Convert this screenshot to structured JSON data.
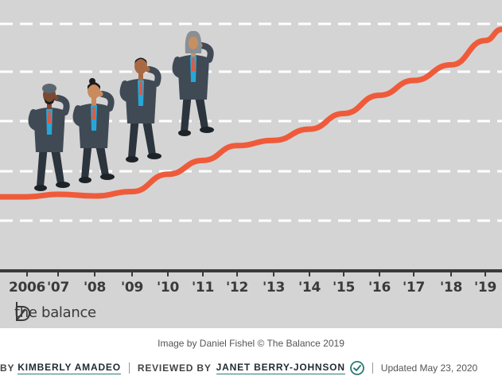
{
  "chart_data": {
    "type": "line",
    "title": "",
    "xlabel": "",
    "ylabel": "",
    "categories": [
      "2006",
      "'07",
      "'08",
      "'09",
      "'10",
      "'11",
      "'12",
      "'13",
      "'14",
      "'15",
      "'16",
      "'17",
      "'18",
      "'19"
    ],
    "grid": true,
    "legend": "none",
    "series": [
      {
        "values_relative": [
          1.0,
          1.3,
          1.1,
          1.6,
          3.6,
          5.2,
          6.9,
          7.5,
          8.8,
          10.6,
          12.7,
          14.4,
          16.2,
          19.0
        ]
      }
    ],
    "colors": {
      "line": "#ef5b3a",
      "axis": "#3a3a3a",
      "grid": "#ffffff",
      "background": "#d4d4d4"
    }
  },
  "illustration": {
    "people": [
      {
        "name": "person-turban",
        "icon": "person-thinking"
      },
      {
        "name": "person-phone",
        "icon": "person-on-phone"
      },
      {
        "name": "person-cap",
        "icon": "person-on-phone"
      },
      {
        "name": "person-hijab",
        "icon": "person-on-phone"
      }
    ]
  },
  "brand": {
    "logo_icon": "the-balance-logo-icon",
    "text": "the balance"
  },
  "caption": "Image by Daniel Fishel © The Balance 2019",
  "byline": {
    "by_label": "BY",
    "author": "KIMBERLY AMADEO",
    "reviewed_label": "REVIEWED BY",
    "reviewer": "JANET BERRY-JOHNSON",
    "verified_icon": "check-circle-icon",
    "updated": "Updated May 23, 2020"
  }
}
